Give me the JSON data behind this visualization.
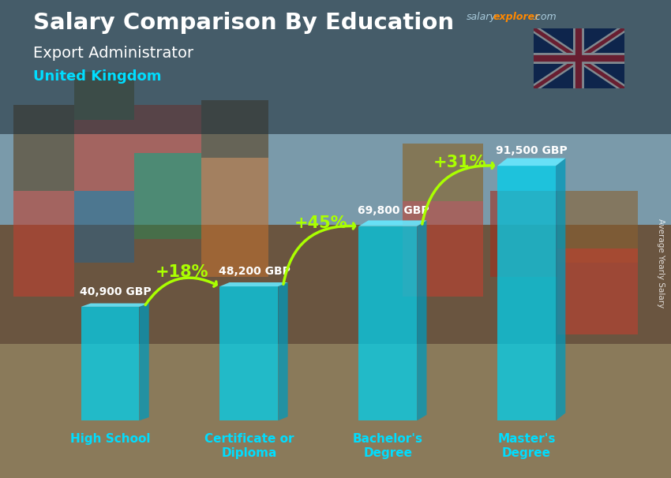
{
  "title_main": "Salary Comparison By Education",
  "subtitle": "Export Administrator",
  "location": "United Kingdom",
  "categories": [
    "High School",
    "Certificate or\nDiploma",
    "Bachelor's\nDegree",
    "Master's\nDegree"
  ],
  "values": [
    40900,
    48200,
    69800,
    91500
  ],
  "labels": [
    "40,900 GBP",
    "48,200 GBP",
    "69,800 GBP",
    "91,500 GBP"
  ],
  "label_positions": [
    "left_above",
    "right_above",
    "left_above",
    "right_above"
  ],
  "pct_changes": [
    "+18%",
    "+45%",
    "+31%"
  ],
  "bar_color": "#00d0ee",
  "bar_alpha": 0.75,
  "bar_right_color": "#0099bb",
  "bar_top_color": "#66e8ff",
  "bg_top_color": "#6a8faa",
  "bg_mid_color": "#8aaa99",
  "bg_bottom_color": "#8a7a60",
  "text_color_white": "#ffffff",
  "text_color_cyan": "#00ddff",
  "text_color_green": "#aaff00",
  "text_color_salary": "#aaddee",
  "text_color_explorer": "#ff8800",
  "ylim": [
    0,
    115000
  ],
  "bar_width": 0.42,
  "x_positions": [
    0,
    1,
    2,
    3
  ]
}
